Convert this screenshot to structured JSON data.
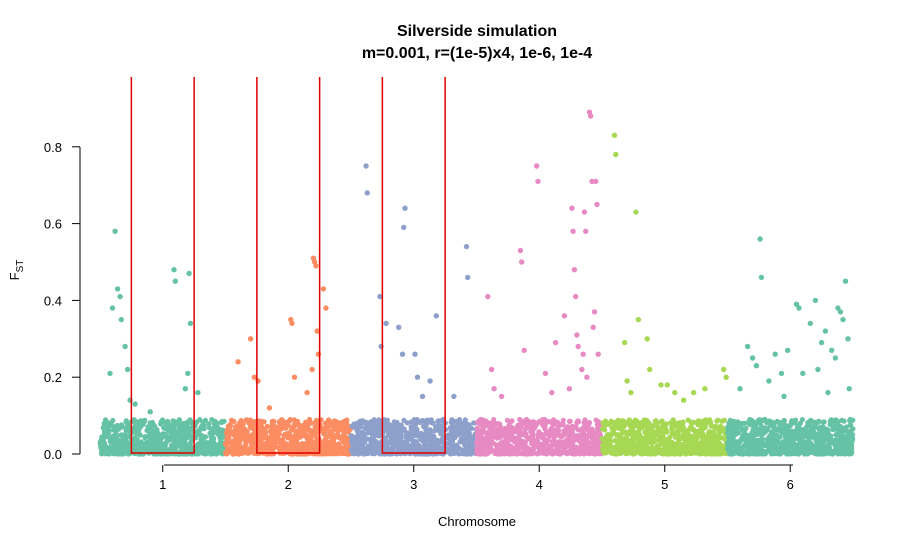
{
  "chart_data": {
    "type": "scatter",
    "title": "Silverside simulation",
    "subtitle": "m=0.001, r=(1e-5)x4, 1e-6, 1e-4",
    "xlabel": "Chromosome",
    "ylabel_main": "F",
    "ylabel_sub": "ST",
    "ylim": [
      0,
      0.88
    ],
    "yticks": [
      "0.0",
      "0.2",
      "0.4",
      "0.6",
      "0.8"
    ],
    "grid": false,
    "categories": [
      "1",
      "2",
      "3",
      "4",
      "5",
      "6"
    ],
    "colors": [
      "#66C2A5",
      "#FC8D62",
      "#8DA0CB",
      "#E78AC3",
      "#A6D854",
      "#66C2A5"
    ],
    "highlight_color": "#E00000",
    "highlight_regions": [
      {
        "chromosome": "1",
        "x_start": 0.75,
        "x_end": 1.25
      },
      {
        "chromosome": "2",
        "x_start": 1.75,
        "x_end": 2.25
      },
      {
        "chromosome": "3",
        "x_start": 2.75,
        "x_end": 3.25
      }
    ],
    "background_points_per_chromosome": 700,
    "background_max_fst": 0.09,
    "series": [
      {
        "chromosome": "1",
        "points": [
          [
            0.62,
            0.58
          ],
          [
            0.6,
            0.38
          ],
          [
            0.64,
            0.43
          ],
          [
            0.66,
            0.41
          ],
          [
            0.67,
            0.35
          ],
          [
            0.7,
            0.28
          ],
          [
            0.72,
            0.22
          ],
          [
            0.74,
            0.14
          ],
          [
            0.78,
            0.13
          ],
          [
            1.09,
            0.48
          ],
          [
            1.1,
            0.45
          ],
          [
            1.21,
            0.47
          ],
          [
            1.22,
            0.34
          ],
          [
            1.2,
            0.21
          ],
          [
            1.18,
            0.17
          ],
          [
            1.28,
            0.16
          ],
          [
            0.58,
            0.21
          ],
          [
            0.9,
            0.11
          ]
        ]
      },
      {
        "chromosome": "2",
        "points": [
          [
            1.6,
            0.24
          ],
          [
            1.7,
            0.3
          ],
          [
            1.73,
            0.2
          ],
          [
            1.76,
            0.19
          ],
          [
            2.02,
            0.35
          ],
          [
            2.03,
            0.34
          ],
          [
            2.05,
            0.2
          ],
          [
            2.2,
            0.51
          ],
          [
            2.21,
            0.5
          ],
          [
            2.22,
            0.49
          ],
          [
            2.23,
            0.32
          ],
          [
            2.24,
            0.26
          ],
          [
            2.28,
            0.43
          ],
          [
            2.3,
            0.38
          ],
          [
            2.19,
            0.22
          ],
          [
            2.15,
            0.16
          ],
          [
            1.85,
            0.12
          ]
        ]
      },
      {
        "chromosome": "3",
        "points": [
          [
            2.62,
            0.75
          ],
          [
            2.63,
            0.68
          ],
          [
            2.73,
            0.41
          ],
          [
            2.74,
            0.28
          ],
          [
            2.78,
            0.34
          ],
          [
            2.93,
            0.64
          ],
          [
            2.92,
            0.59
          ],
          [
            2.88,
            0.33
          ],
          [
            2.91,
            0.26
          ],
          [
            3.01,
            0.26
          ],
          [
            3.03,
            0.2
          ],
          [
            3.07,
            0.15
          ],
          [
            3.18,
            0.36
          ],
          [
            3.13,
            0.19
          ],
          [
            3.42,
            0.54
          ],
          [
            3.43,
            0.46
          ],
          [
            3.32,
            0.15
          ]
        ]
      },
      {
        "chromosome": "4",
        "points": [
          [
            3.59,
            0.41
          ],
          [
            3.62,
            0.22
          ],
          [
            3.64,
            0.17
          ],
          [
            3.85,
            0.53
          ],
          [
            3.86,
            0.5
          ],
          [
            3.88,
            0.27
          ],
          [
            3.98,
            0.75
          ],
          [
            3.99,
            0.71
          ],
          [
            4.05,
            0.21
          ],
          [
            4.13,
            0.29
          ],
          [
            4.2,
            0.36
          ],
          [
            4.26,
            0.64
          ],
          [
            4.27,
            0.58
          ],
          [
            4.28,
            0.48
          ],
          [
            4.29,
            0.41
          ],
          [
            4.3,
            0.31
          ],
          [
            4.31,
            0.28
          ],
          [
            4.35,
            0.26
          ],
          [
            4.36,
            0.63
          ],
          [
            4.37,
            0.58
          ],
          [
            4.38,
            0.2
          ],
          [
            4.4,
            0.89
          ],
          [
            4.41,
            0.88
          ],
          [
            4.42,
            0.71
          ],
          [
            4.45,
            0.71
          ],
          [
            4.46,
            0.65
          ],
          [
            4.44,
            0.37
          ],
          [
            4.43,
            0.33
          ],
          [
            4.47,
            0.26
          ],
          [
            4.34,
            0.22
          ],
          [
            4.24,
            0.17
          ],
          [
            4.1,
            0.16
          ],
          [
            3.7,
            0.15
          ]
        ]
      },
      {
        "chromosome": "5",
        "points": [
          [
            4.6,
            0.83
          ],
          [
            4.61,
            0.78
          ],
          [
            4.68,
            0.29
          ],
          [
            4.7,
            0.19
          ],
          [
            4.77,
            0.63
          ],
          [
            4.79,
            0.35
          ],
          [
            4.86,
            0.3
          ],
          [
            4.88,
            0.22
          ],
          [
            4.97,
            0.18
          ],
          [
            5.02,
            0.18
          ],
          [
            5.08,
            0.16
          ],
          [
            5.23,
            0.16
          ],
          [
            5.32,
            0.17
          ],
          [
            5.47,
            0.22
          ],
          [
            5.49,
            0.2
          ],
          [
            4.73,
            0.16
          ],
          [
            5.15,
            0.14
          ]
        ]
      },
      {
        "chromosome": "6",
        "points": [
          [
            5.6,
            0.17
          ],
          [
            5.66,
            0.28
          ],
          [
            5.7,
            0.25
          ],
          [
            5.73,
            0.23
          ],
          [
            5.76,
            0.56
          ],
          [
            5.77,
            0.46
          ],
          [
            5.83,
            0.19
          ],
          [
            5.88,
            0.26
          ],
          [
            5.93,
            0.21
          ],
          [
            5.98,
            0.27
          ],
          [
            6.05,
            0.39
          ],
          [
            6.07,
            0.38
          ],
          [
            6.16,
            0.34
          ],
          [
            6.2,
            0.4
          ],
          [
            6.25,
            0.29
          ],
          [
            6.28,
            0.32
          ],
          [
            6.33,
            0.27
          ],
          [
            6.36,
            0.25
          ],
          [
            6.38,
            0.38
          ],
          [
            6.4,
            0.37
          ],
          [
            6.42,
            0.35
          ],
          [
            6.44,
            0.45
          ],
          [
            6.46,
            0.3
          ],
          [
            6.47,
            0.17
          ],
          [
            6.1,
            0.21
          ],
          [
            6.22,
            0.22
          ],
          [
            5.95,
            0.15
          ],
          [
            6.3,
            0.16
          ]
        ]
      }
    ]
  }
}
